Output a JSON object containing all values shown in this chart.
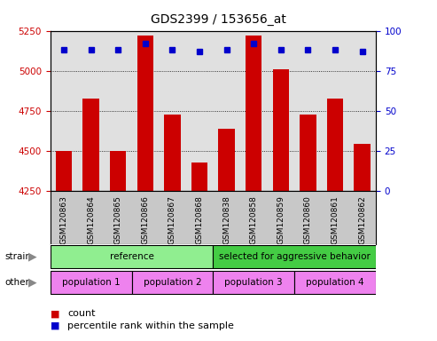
{
  "title": "GDS2399 / 153656_at",
  "samples": [
    "GSM120863",
    "GSM120864",
    "GSM120865",
    "GSM120866",
    "GSM120867",
    "GSM120868",
    "GSM120838",
    "GSM120858",
    "GSM120859",
    "GSM120860",
    "GSM120861",
    "GSM120862"
  ],
  "counts": [
    4500,
    4825,
    4500,
    5220,
    4725,
    4430,
    4640,
    5220,
    5010,
    4725,
    4825,
    4545
  ],
  "percentile_ranks": [
    88,
    88,
    88,
    92,
    88,
    87,
    88,
    92,
    88,
    88,
    88,
    87
  ],
  "ylim_left": [
    4250,
    5250
  ],
  "ylim_right": [
    0,
    100
  ],
  "yticks_left": [
    4250,
    4500,
    4750,
    5000,
    5250
  ],
  "yticks_right": [
    0,
    25,
    50,
    75,
    100
  ],
  "bar_color": "#cc0000",
  "dot_color": "#0000cc",
  "background_color": "#ffffff",
  "plot_bg_color": "#e0e0e0",
  "strain_ref_color": "#90ee90",
  "strain_sel_color": "#44cc44",
  "other_color": "#ee82ee",
  "legend_count_color": "#cc0000",
  "legend_rank_color": "#0000cc",
  "left_axis_color": "#cc0000",
  "right_axis_color": "#0000cc",
  "strain_groups": [
    {
      "label": "reference",
      "start": 0,
      "end": 6,
      "color": "#90ee90"
    },
    {
      "label": "selected for aggressive behavior",
      "start": 6,
      "end": 12,
      "color": "#44cc44"
    }
  ],
  "other_groups": [
    {
      "label": "population 1",
      "start": 0,
      "end": 3,
      "color": "#ee82ee"
    },
    {
      "label": "population 2",
      "start": 3,
      "end": 6,
      "color": "#ee82ee"
    },
    {
      "label": "population 3",
      "start": 6,
      "end": 9,
      "color": "#ee82ee"
    },
    {
      "label": "population 4",
      "start": 9,
      "end": 12,
      "color": "#ee82ee"
    }
  ],
  "figsize": [
    4.93,
    3.84
  ],
  "dpi": 100
}
